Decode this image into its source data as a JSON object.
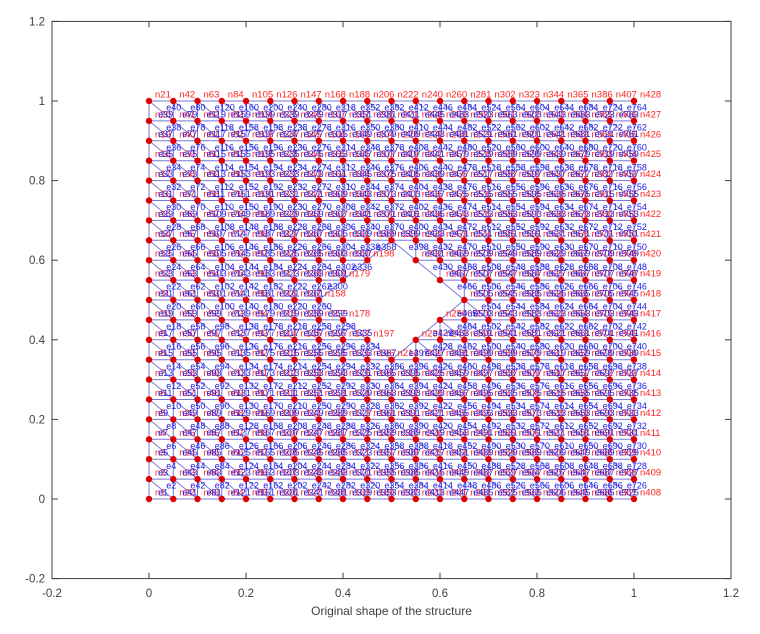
{
  "chart_data": {
    "type": "scatter",
    "subtype": "finite-element-mesh",
    "title": "",
    "xlabel": "Original shape of the structure",
    "ylabel": "",
    "xlim": [
      -0.2,
      1.2
    ],
    "ylim": [
      -0.2,
      1.2
    ],
    "x_ticks": [
      -0.2,
      0,
      0.2,
      0.4,
      0.6,
      0.8,
      1,
      1.2
    ],
    "x_tick_labels": [
      "-0.2",
      "0",
      "0.2",
      "0.4",
      "0.6",
      "0.8",
      "1",
      "1.2"
    ],
    "y_ticks": [
      -0.2,
      0,
      0.2,
      0.4,
      0.6,
      0.8,
      1,
      1.2
    ],
    "y_tick_labels": [
      "-0.2",
      "0",
      "0.2",
      "0.4",
      "0.6",
      "0.8",
      "1",
      "1.2"
    ],
    "grid": false,
    "legend": null,
    "mesh": {
      "nodes_x": 21,
      "nodes_y": 21,
      "domain": {
        "x": [
          0,
          1
        ],
        "y": [
          0,
          1
        ]
      },
      "hole": {
        "center": [
          0.5,
          0.5
        ],
        "radius": 0.15,
        "metric": "L1-diamond"
      },
      "diagonal": "top-left-to-bottom-right",
      "node_label_prefix": "n",
      "element_label_prefix": "e",
      "node_count": 428,
      "node_numbering": "column-major, bottom-to-top then left-to-right, skipping hole nodes"
    },
    "visible_node_labels": {
      "top_row": [
        "n21",
        "n42",
        "n63",
        "n84",
        "n105",
        "n126",
        "n147",
        "n168",
        "n188",
        "n206",
        "n222",
        "n240",
        "n260",
        "n281",
        "n302",
        "n323",
        "n344",
        "n365",
        "n386",
        "n407",
        "n428"
      ],
      "right_column": [
        "n427",
        "n426",
        "n425",
        "n424",
        "n423",
        "n422",
        "n421",
        "n420",
        "n419",
        "n418",
        "n417",
        "n416",
        "n415",
        "n414",
        "n413",
        "n412",
        "n411",
        "n410",
        "n409",
        "n408"
      ],
      "hole_boundary": [
        "n198",
        "n179",
        "n178",
        "n177",
        "n197",
        "n231",
        "n250"
      ]
    },
    "colors": {
      "mesh_line": "#6d6dd8",
      "node_marker": "#e00000",
      "node_label": "#ff2222",
      "element_label": "#1b1be6",
      "axis": "#3f3f3f",
      "background": "#ffffff"
    }
  }
}
